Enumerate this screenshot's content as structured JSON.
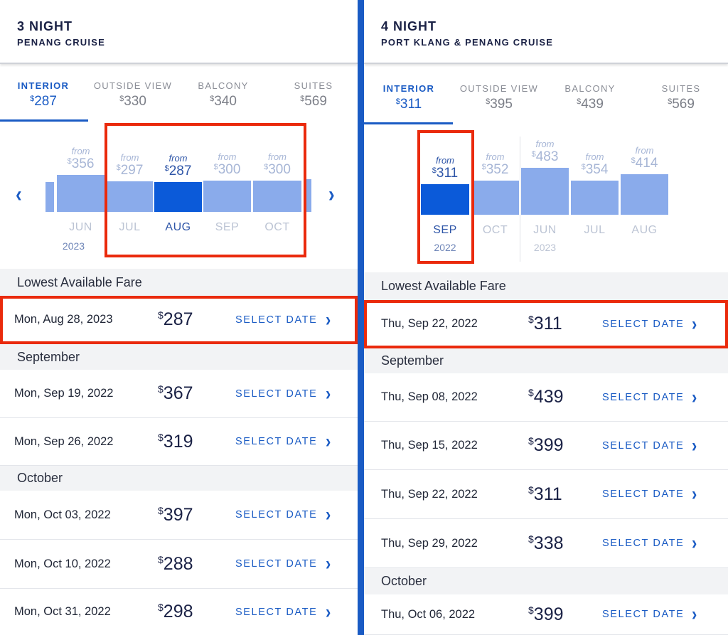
{
  "panels": [
    {
      "title": "3 NIGHT",
      "subtitle": "PENANG CRUISE",
      "tabs": [
        {
          "label": "INTERIOR",
          "price": "287",
          "active": true
        },
        {
          "label": "OUTSIDE VIEW",
          "price": "330"
        },
        {
          "label": "BALCONY",
          "price": "340"
        },
        {
          "label": "SUITES",
          "price": "569"
        }
      ],
      "chart_data": {
        "type": "bar",
        "from_label": "from",
        "categories": [
          "JUN",
          "JUL",
          "AUG",
          "SEP",
          "OCT"
        ],
        "values": [
          356,
          297,
          287,
          300,
          300
        ],
        "selected": "AUG",
        "year_labels": [
          {
            "month": "JUN",
            "year": "2023"
          }
        ]
      },
      "sections": [
        {
          "header": "Lowest Available Fare",
          "rows": [
            {
              "date": "Mon, Aug 28, 2023",
              "price": "287",
              "highlight": true
            }
          ]
        },
        {
          "header": "September",
          "rows": [
            {
              "date": "Mon, Sep 19, 2022",
              "price": "367"
            },
            {
              "date": "Mon, Sep 26, 2022",
              "price": "319"
            }
          ]
        },
        {
          "header": "October",
          "rows": [
            {
              "date": "Mon, Oct 03, 2022",
              "price": "397"
            },
            {
              "date": "Mon, Oct 10, 2022",
              "price": "288"
            },
            {
              "date": "Mon, Oct 31, 2022",
              "price": "298"
            }
          ]
        }
      ]
    },
    {
      "title": "4 NIGHT",
      "subtitle": "PORT KLANG & PENANG CRUISE",
      "tabs": [
        {
          "label": "INTERIOR",
          "price": "311",
          "active": true
        },
        {
          "label": "OUTSIDE VIEW",
          "price": "395"
        },
        {
          "label": "BALCONY",
          "price": "439"
        },
        {
          "label": "SUITES",
          "price": "569"
        }
      ],
      "chart_data": {
        "type": "bar",
        "from_label": "from",
        "categories": [
          "SEP",
          "OCT",
          "JUN",
          "JUL",
          "AUG"
        ],
        "values": [
          311,
          352,
          483,
          354,
          414
        ],
        "selected": "SEP",
        "year_labels": [
          {
            "month": "SEP",
            "year": "2022"
          },
          {
            "month": "JUN",
            "year": "2023"
          }
        ]
      },
      "sections": [
        {
          "header": "Lowest Available Fare",
          "rows": [
            {
              "date": "Thu, Sep 22, 2022",
              "price": "311",
              "highlight": true
            }
          ]
        },
        {
          "header": "September",
          "rows": [
            {
              "date": "Thu, Sep 08, 2022",
              "price": "439"
            },
            {
              "date": "Thu, Sep 15, 2022",
              "price": "399"
            },
            {
              "date": "Thu, Sep 22, 2022",
              "price": "311"
            },
            {
              "date": "Thu, Sep 29, 2022",
              "price": "338"
            }
          ]
        },
        {
          "header": "October",
          "rows": [
            {
              "date": "Thu, Oct 06, 2022",
              "price": "399"
            }
          ]
        }
      ]
    }
  ],
  "select_label": "SELECT DATE",
  "icons": {
    "prev": "chevron-left-icon",
    "next": "chevron-right-icon",
    "row": "chevron-right-icon"
  },
  "colors": {
    "accent": "#1a5bc4",
    "selected_bar": "#0b5ad9",
    "bar": "#8aabeb",
    "highlight": "#ea2a0c"
  }
}
